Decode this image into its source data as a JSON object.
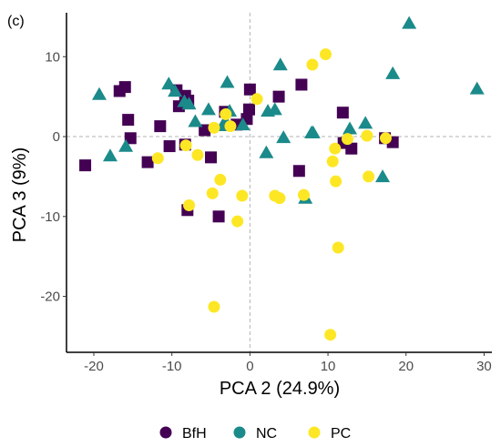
{
  "chart_data": {
    "type": "scatter",
    "panel_label": "(c)",
    "xlabel": "PCA 2 (24.9%)",
    "ylabel": "PCA 3 (9%)",
    "xlim": [
      -23.5,
      31
    ],
    "ylim": [
      -27,
      15.5
    ],
    "x_ticks": [
      -20,
      -10,
      0,
      10,
      20,
      30
    ],
    "y_ticks": [
      -20,
      -10,
      0,
      10
    ],
    "grid": false,
    "reference_lines": {
      "x": 0,
      "y": 0,
      "style": "dashed"
    },
    "legend_position": "bottom",
    "series": [
      {
        "name": "BfH",
        "shape": "square",
        "color": "#440154",
        "points": [
          [
            -21.1,
            -3.6
          ],
          [
            -16.7,
            5.7
          ],
          [
            -16.0,
            6.2
          ],
          [
            -15.6,
            2.1
          ],
          [
            -15.3,
            -0.2
          ],
          [
            -13.1,
            -3.2
          ],
          [
            -11.5,
            1.3
          ],
          [
            -10.3,
            -1.2
          ],
          [
            -9.4,
            5.8
          ],
          [
            -9.1,
            3.8
          ],
          [
            -8.3,
            5.1
          ],
          [
            -8.3,
            -1.0
          ],
          [
            -7.9,
            4.5
          ],
          [
            -8.0,
            -9.2
          ],
          [
            -5.8,
            0.8
          ],
          [
            -5.0,
            -2.6
          ],
          [
            -4.0,
            -10.0
          ],
          [
            -3.2,
            3.1
          ],
          [
            -1.7,
            1.5
          ],
          [
            -0.4,
            2.2
          ],
          [
            -0.1,
            3.4
          ],
          [
            0.0,
            5.9
          ],
          [
            3.7,
            5.0
          ],
          [
            6.3,
            -4.3
          ],
          [
            6.6,
            6.5
          ],
          [
            11.9,
            3.0
          ],
          [
            12.0,
            -0.8
          ],
          [
            13.0,
            -1.5
          ],
          [
            17.3,
            -0.2
          ],
          [
            18.3,
            -0.7
          ]
        ]
      },
      {
        "name": "NC",
        "shape": "triangle",
        "color": "#1b8a8a",
        "points": [
          [
            -19.3,
            5.2
          ],
          [
            -17.9,
            -2.5
          ],
          [
            -15.9,
            -1.3
          ],
          [
            -10.4,
            6.5
          ],
          [
            -9.6,
            5.6
          ],
          [
            -8.4,
            4.3
          ],
          [
            -7.8,
            4.0
          ],
          [
            -7.0,
            1.8
          ],
          [
            -5.3,
            3.3
          ],
          [
            -3.5,
            1.3
          ],
          [
            -3.1,
            1.8
          ],
          [
            -2.9,
            6.7
          ],
          [
            -2.6,
            3.1
          ],
          [
            -0.9,
            1.4
          ],
          [
            2.1,
            -2.1
          ],
          [
            2.3,
            3.1
          ],
          [
            3.2,
            3.3
          ],
          [
            3.9,
            8.9
          ],
          [
            4.3,
            -0.2
          ],
          [
            7.1,
            -7.8
          ],
          [
            7.9,
            0.4
          ],
          [
            8.1,
            0.4
          ],
          [
            12.8,
            0.9
          ],
          [
            14.8,
            1.6
          ],
          [
            17.0,
            -5.1
          ],
          [
            18.3,
            7.8
          ],
          [
            20.4,
            14.1
          ],
          [
            29.1,
            5.9
          ]
        ]
      },
      {
        "name": "PC",
        "shape": "circle",
        "color": "#fde725",
        "points": [
          [
            -11.8,
            -2.7
          ],
          [
            -8.2,
            -1.1
          ],
          [
            -7.8,
            -8.6
          ],
          [
            -6.7,
            -2.3
          ],
          [
            -4.8,
            -7.1
          ],
          [
            -4.6,
            1.1
          ],
          [
            -4.6,
            -21.3
          ],
          [
            -3.8,
            -5.4
          ],
          [
            -3.1,
            2.8
          ],
          [
            -2.5,
            1.3
          ],
          [
            -1.6,
            -10.6
          ],
          [
            -1.0,
            -7.4
          ],
          [
            0.9,
            4.7
          ],
          [
            3.2,
            -7.4
          ],
          [
            3.8,
            -7.7
          ],
          [
            6.9,
            -7.3
          ],
          [
            8.0,
            9.0
          ],
          [
            9.7,
            10.3
          ],
          [
            10.3,
            -24.8
          ],
          [
            10.6,
            -3.1
          ],
          [
            10.9,
            -1.5
          ],
          [
            11.0,
            -5.6
          ],
          [
            11.3,
            -13.9
          ],
          [
            12.5,
            -0.3
          ],
          [
            15.0,
            0.1
          ],
          [
            15.2,
            -5.0
          ],
          [
            17.4,
            -0.2
          ]
        ]
      }
    ],
    "legend": {
      "entries": [
        "BfH",
        "NC",
        "PC"
      ]
    }
  }
}
